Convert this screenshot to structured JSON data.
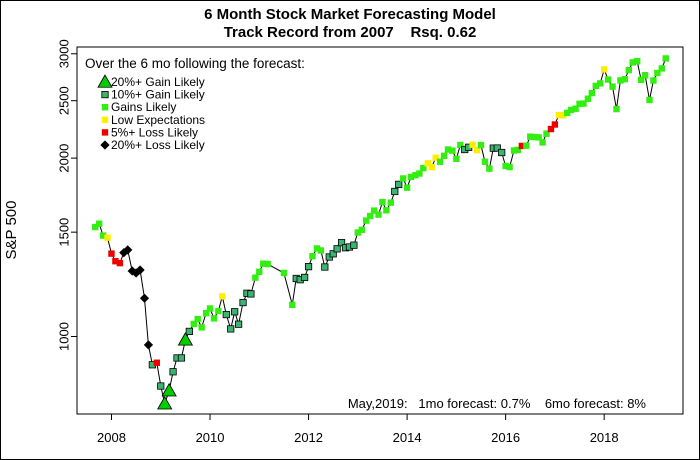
{
  "chart_data": {
    "type": "scatter",
    "title": "6 Month Stock Market Forecasting Model",
    "subtitle": "Track Record from 2007    Rsq. 0.62",
    "xlabel": "",
    "ylabel": "S&P 500",
    "y_scale": "log",
    "xlim": [
      2007.3,
      2019.6
    ],
    "ylim": [
      740,
      3080
    ],
    "x_ticks": [
      2008,
      2010,
      2012,
      2014,
      2016,
      2018
    ],
    "x_tick_labels": [
      "2008",
      "2010",
      "2012",
      "2014",
      "2016",
      "2018"
    ],
    "y_ticks": [
      1000,
      1500,
      2000,
      2500,
      3000
    ],
    "y_tick_labels": [
      "1000",
      "1500",
      "2000",
      "2500",
      "3000"
    ],
    "grid": false,
    "legend": {
      "placement": "top-left",
      "heading": "Over the 6 mo following the forecast:",
      "entries": [
        {
          "label": "20%+ Gain Likely",
          "class": "g20",
          "shape": "triangle",
          "color": "#00cc00"
        },
        {
          "label": "10%+ Gain Likely",
          "class": "g10",
          "shape": "square",
          "color": "#3cb371"
        },
        {
          "label": "Gains Likely",
          "class": "g",
          "shape": "square",
          "color": "#33ee11"
        },
        {
          "label": "Low Expectations",
          "class": "low",
          "shape": "square",
          "color": "#ffee00"
        },
        {
          "label": "5%+  Loss Likely",
          "class": "l5",
          "shape": "square",
          "color": "#ee0000"
        },
        {
          "label": "20%+  Loss Likely",
          "class": "l20",
          "shape": "diamond",
          "color": "#000000"
        }
      ]
    },
    "footer": "May,2019:   1mo forecast: 0.7%    6mo forecast: 8%",
    "points": [
      {
        "x": 2007.67,
        "y": 1530,
        "c": "g"
      },
      {
        "x": 2007.75,
        "y": 1550,
        "c": "g"
      },
      {
        "x": 2007.83,
        "y": 1480,
        "c": "g"
      },
      {
        "x": 2007.92,
        "y": 1468,
        "c": "low"
      },
      {
        "x": 2008.0,
        "y": 1380,
        "c": "l5"
      },
      {
        "x": 2008.08,
        "y": 1340,
        "c": "l5"
      },
      {
        "x": 2008.17,
        "y": 1330,
        "c": "l5"
      },
      {
        "x": 2008.25,
        "y": 1385,
        "c": "l20"
      },
      {
        "x": 2008.33,
        "y": 1400,
        "c": "l20"
      },
      {
        "x": 2008.42,
        "y": 1290,
        "c": "l20"
      },
      {
        "x": 2008.5,
        "y": 1280,
        "c": "l20"
      },
      {
        "x": 2008.58,
        "y": 1295,
        "c": "l20"
      },
      {
        "x": 2008.67,
        "y": 1160,
        "c": "l20"
      },
      {
        "x": 2008.75,
        "y": 968,
        "c": "l20"
      },
      {
        "x": 2008.83,
        "y": 896,
        "c": "g10"
      },
      {
        "x": 2008.92,
        "y": 903,
        "c": "l5"
      },
      {
        "x": 2009.0,
        "y": 825,
        "c": "g10"
      },
      {
        "x": 2009.08,
        "y": 770,
        "c": "g20"
      },
      {
        "x": 2009.17,
        "y": 810,
        "c": "g20"
      },
      {
        "x": 2009.25,
        "y": 872,
        "c": "g10"
      },
      {
        "x": 2009.33,
        "y": 920,
        "c": "g10"
      },
      {
        "x": 2009.42,
        "y": 920,
        "c": "g10"
      },
      {
        "x": 2009.5,
        "y": 987,
        "c": "g20"
      },
      {
        "x": 2009.58,
        "y": 1020,
        "c": "g10"
      },
      {
        "x": 2009.67,
        "y": 1050,
        "c": "g"
      },
      {
        "x": 2009.75,
        "y": 1070,
        "c": "g"
      },
      {
        "x": 2009.83,
        "y": 1036,
        "c": "g"
      },
      {
        "x": 2009.92,
        "y": 1095,
        "c": "g"
      },
      {
        "x": 2010.0,
        "y": 1115,
        "c": "g"
      },
      {
        "x": 2010.08,
        "y": 1073,
        "c": "g"
      },
      {
        "x": 2010.17,
        "y": 1104,
        "c": "g"
      },
      {
        "x": 2010.25,
        "y": 1169,
        "c": "low"
      },
      {
        "x": 2010.33,
        "y": 1089,
        "c": "g10"
      },
      {
        "x": 2010.42,
        "y": 1030,
        "c": "g10"
      },
      {
        "x": 2010.5,
        "y": 1101,
        "c": "g10"
      },
      {
        "x": 2010.58,
        "y": 1049,
        "c": "g10"
      },
      {
        "x": 2010.67,
        "y": 1141,
        "c": "g10"
      },
      {
        "x": 2010.75,
        "y": 1183,
        "c": "g10"
      },
      {
        "x": 2010.83,
        "y": 1180,
        "c": "g10"
      },
      {
        "x": 2010.92,
        "y": 1257,
        "c": "g"
      },
      {
        "x": 2011.0,
        "y": 1286,
        "c": "g"
      },
      {
        "x": 2011.08,
        "y": 1327,
        "c": "g"
      },
      {
        "x": 2011.17,
        "y": 1325,
        "c": "g"
      },
      {
        "x": 2011.5,
        "y": 1280,
        "c": "g"
      },
      {
        "x": 2011.67,
        "y": 1131,
        "c": "g"
      },
      {
        "x": 2011.75,
        "y": 1253,
        "c": "g10"
      },
      {
        "x": 2011.83,
        "y": 1247,
        "c": "g10"
      },
      {
        "x": 2011.92,
        "y": 1258,
        "c": "g10"
      },
      {
        "x": 2012.0,
        "y": 1312,
        "c": "g10"
      },
      {
        "x": 2012.08,
        "y": 1366,
        "c": "g"
      },
      {
        "x": 2012.17,
        "y": 1408,
        "c": "g"
      },
      {
        "x": 2012.25,
        "y": 1397,
        "c": "g"
      },
      {
        "x": 2012.33,
        "y": 1310,
        "c": "g10"
      },
      {
        "x": 2012.42,
        "y": 1362,
        "c": "g10"
      },
      {
        "x": 2012.5,
        "y": 1379,
        "c": "g10"
      },
      {
        "x": 2012.58,
        "y": 1406,
        "c": "g10"
      },
      {
        "x": 2012.67,
        "y": 1440,
        "c": "g10"
      },
      {
        "x": 2012.75,
        "y": 1412,
        "c": "g10"
      },
      {
        "x": 2012.83,
        "y": 1416,
        "c": "g10"
      },
      {
        "x": 2012.92,
        "y": 1426,
        "c": "g10"
      },
      {
        "x": 2013.0,
        "y": 1498,
        "c": "g"
      },
      {
        "x": 2013.08,
        "y": 1514,
        "c": "g"
      },
      {
        "x": 2013.17,
        "y": 1569,
        "c": "g"
      },
      {
        "x": 2013.25,
        "y": 1597,
        "c": "g"
      },
      {
        "x": 2013.33,
        "y": 1631,
        "c": "g"
      },
      {
        "x": 2013.42,
        "y": 1606,
        "c": "g"
      },
      {
        "x": 2013.5,
        "y": 1686,
        "c": "g"
      },
      {
        "x": 2013.58,
        "y": 1633,
        "c": "g"
      },
      {
        "x": 2013.67,
        "y": 1682,
        "c": "g"
      },
      {
        "x": 2013.75,
        "y": 1757,
        "c": "g10"
      },
      {
        "x": 2013.83,
        "y": 1806,
        "c": "g10"
      },
      {
        "x": 2013.92,
        "y": 1848,
        "c": "g"
      },
      {
        "x": 2014.0,
        "y": 1783,
        "c": "g"
      },
      {
        "x": 2014.08,
        "y": 1859,
        "c": "g"
      },
      {
        "x": 2014.17,
        "y": 1872,
        "c": "g"
      },
      {
        "x": 2014.25,
        "y": 1884,
        "c": "g"
      },
      {
        "x": 2014.33,
        "y": 1924,
        "c": "g"
      },
      {
        "x": 2014.42,
        "y": 1960,
        "c": "low"
      },
      {
        "x": 2014.5,
        "y": 1931,
        "c": "low"
      },
      {
        "x": 2014.58,
        "y": 2003,
        "c": "low"
      },
      {
        "x": 2014.67,
        "y": 1972,
        "c": "g"
      },
      {
        "x": 2014.75,
        "y": 2018,
        "c": "g"
      },
      {
        "x": 2014.83,
        "y": 2068,
        "c": "g"
      },
      {
        "x": 2014.92,
        "y": 2059,
        "c": "g"
      },
      {
        "x": 2015.0,
        "y": 1995,
        "c": "g"
      },
      {
        "x": 2015.08,
        "y": 2105,
        "c": "g"
      },
      {
        "x": 2015.17,
        "y": 2068,
        "c": "g10"
      },
      {
        "x": 2015.25,
        "y": 2086,
        "c": "g10"
      },
      {
        "x": 2015.33,
        "y": 2107,
        "c": "low"
      },
      {
        "x": 2015.42,
        "y": 2063,
        "c": "low"
      },
      {
        "x": 2015.5,
        "y": 2104,
        "c": "g"
      },
      {
        "x": 2015.58,
        "y": 1972,
        "c": "g"
      },
      {
        "x": 2015.67,
        "y": 1920,
        "c": "g"
      },
      {
        "x": 2015.75,
        "y": 2079,
        "c": "g10"
      },
      {
        "x": 2015.83,
        "y": 2080,
        "c": "g10"
      },
      {
        "x": 2015.92,
        "y": 2044,
        "c": "g10"
      },
      {
        "x": 2016.0,
        "y": 1940,
        "c": "g"
      },
      {
        "x": 2016.08,
        "y": 1932,
        "c": "g"
      },
      {
        "x": 2016.17,
        "y": 2060,
        "c": "g"
      },
      {
        "x": 2016.25,
        "y": 2065,
        "c": "g"
      },
      {
        "x": 2016.33,
        "y": 2097,
        "c": "l5"
      },
      {
        "x": 2016.42,
        "y": 2099,
        "c": "g"
      },
      {
        "x": 2016.5,
        "y": 2174,
        "c": "g"
      },
      {
        "x": 2016.58,
        "y": 2171,
        "c": "g"
      },
      {
        "x": 2016.67,
        "y": 2168,
        "c": "g"
      },
      {
        "x": 2016.75,
        "y": 2126,
        "c": "g"
      },
      {
        "x": 2016.83,
        "y": 2199,
        "c": "g"
      },
      {
        "x": 2016.92,
        "y": 2239,
        "c": "l5"
      },
      {
        "x": 2017.0,
        "y": 2279,
        "c": "l5"
      },
      {
        "x": 2017.08,
        "y": 2364,
        "c": "low"
      },
      {
        "x": 2017.17,
        "y": 2363,
        "c": "low"
      },
      {
        "x": 2017.25,
        "y": 2384,
        "c": "g"
      },
      {
        "x": 2017.33,
        "y": 2412,
        "c": "g"
      },
      {
        "x": 2017.42,
        "y": 2423,
        "c": "g"
      },
      {
        "x": 2017.5,
        "y": 2470,
        "c": "g"
      },
      {
        "x": 2017.58,
        "y": 2472,
        "c": "g"
      },
      {
        "x": 2017.67,
        "y": 2519,
        "c": "g"
      },
      {
        "x": 2017.75,
        "y": 2575,
        "c": "g"
      },
      {
        "x": 2017.83,
        "y": 2648,
        "c": "g"
      },
      {
        "x": 2017.92,
        "y": 2674,
        "c": "g"
      },
      {
        "x": 2018.0,
        "y": 2823,
        "c": "low"
      },
      {
        "x": 2018.08,
        "y": 2714,
        "c": "g"
      },
      {
        "x": 2018.17,
        "y": 2641,
        "c": "g"
      },
      {
        "x": 2018.25,
        "y": 2420,
        "c": "g"
      },
      {
        "x": 2018.33,
        "y": 2705,
        "c": "g"
      },
      {
        "x": 2018.42,
        "y": 2718,
        "c": "g"
      },
      {
        "x": 2018.5,
        "y": 2816,
        "c": "g"
      },
      {
        "x": 2018.58,
        "y": 2901,
        "c": "g"
      },
      {
        "x": 2018.67,
        "y": 2914,
        "c": "g"
      },
      {
        "x": 2018.75,
        "y": 2711,
        "c": "g"
      },
      {
        "x": 2018.83,
        "y": 2760,
        "c": "g"
      },
      {
        "x": 2018.92,
        "y": 2507,
        "c": "g"
      },
      {
        "x": 2019.0,
        "y": 2704,
        "c": "g"
      },
      {
        "x": 2019.08,
        "y": 2784,
        "c": "g"
      },
      {
        "x": 2019.17,
        "y": 2834,
        "c": "g"
      },
      {
        "x": 2019.25,
        "y": 2946,
        "c": "g"
      }
    ]
  }
}
